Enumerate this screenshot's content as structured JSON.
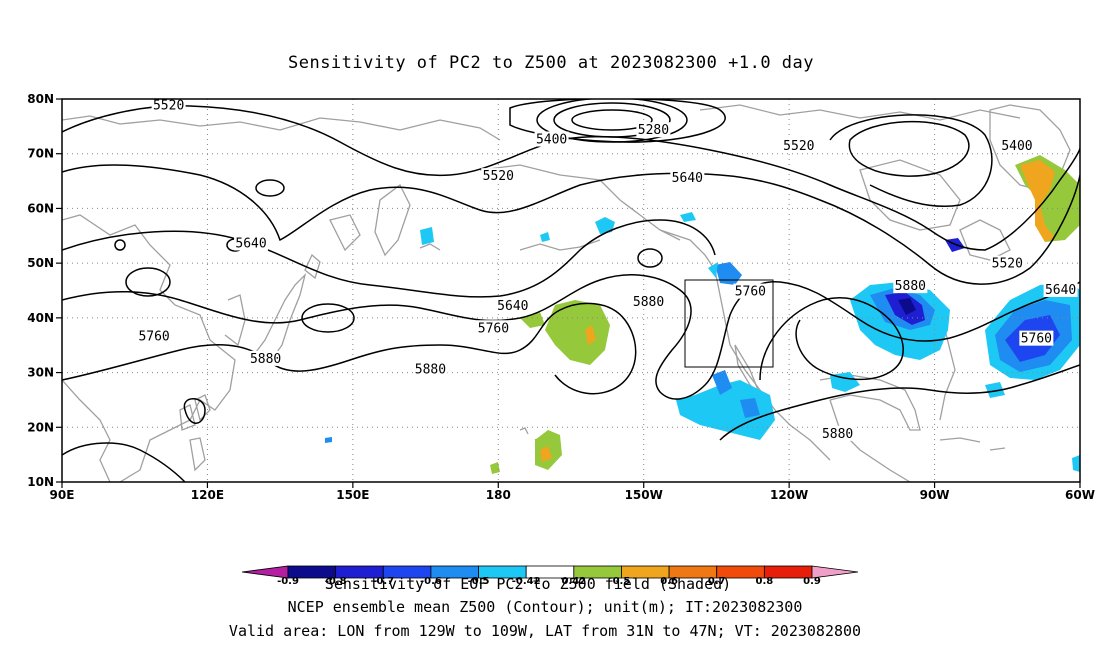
{
  "title": "Sensitivity of PC2 to Z500 at 2023082300 +1.0 day",
  "map": {
    "lon_range": [
      90,
      300
    ],
    "lat_range": [
      10,
      80
    ],
    "lat_ticks": [
      "80N",
      "70N",
      "60N",
      "50N",
      "40N",
      "30N",
      "20N",
      "10N"
    ],
    "lon_ticks": [
      "90E",
      "120E",
      "150E",
      "180",
      "150W",
      "120W",
      "90W",
      "60W"
    ],
    "grid": true,
    "valid_box": {
      "lon_west": 231,
      "lon_east": 251,
      "lat_south": 31,
      "lat_north": 47
    },
    "contour_labels": [
      {
        "text": "5520",
        "lon": 112,
        "lat": 78.8
      },
      {
        "text": "5400",
        "lon": 191,
        "lat": 72.6
      },
      {
        "text": "5280",
        "lon": 212,
        "lat": 74.3
      },
      {
        "text": "5520",
        "lon": 242,
        "lat": 71.4
      },
      {
        "text": "5400",
        "lon": 287,
        "lat": 71.4
      },
      {
        "text": "5520",
        "lon": 180,
        "lat": 65.9
      },
      {
        "text": "5640",
        "lon": 219,
        "lat": 65.6
      },
      {
        "text": "5640",
        "lon": 129,
        "lat": 53.6
      },
      {
        "text": "5520",
        "lon": 285,
        "lat": 49.9
      },
      {
        "text": "5640",
        "lon": 183,
        "lat": 42.2
      },
      {
        "text": "5760",
        "lon": 232,
        "lat": 44.8
      },
      {
        "text": "5880",
        "lon": 265,
        "lat": 45.8
      },
      {
        "text": "5640",
        "lon": 296,
        "lat": 45.1
      },
      {
        "text": "5880",
        "lon": 211,
        "lat": 42.9
      },
      {
        "text": "5760",
        "lon": 179,
        "lat": 38.1
      },
      {
        "text": "5760",
        "lon": 109,
        "lat": 36.6
      },
      {
        "text": "5760",
        "lon": 291,
        "lat": 36.2
      },
      {
        "text": "5880",
        "lon": 132,
        "lat": 32.5
      },
      {
        "text": "5880",
        "lon": 166,
        "lat": 30.6
      },
      {
        "text": "5880",
        "lon": 303,
        "lat": 25.9
      },
      {
        "text": "5880",
        "lon": 250,
        "lat": 18.8
      }
    ]
  },
  "colorbar": {
    "colors": [
      "#b41ea0",
      "#0b0b8c",
      "#1e1ed2",
      "#1e46f0",
      "#1e8cf0",
      "#1ec8f5",
      "#ffffff",
      "#96c83c",
      "#f0a51e",
      "#f07814",
      "#f04b0a",
      "#e61e0a",
      "#f0a0c8"
    ],
    "labels": [
      "-0.9",
      "-0.8",
      "-0.7",
      "-0.6",
      "-0.5",
      "-0.42",
      "0.42",
      "0.5",
      "0.6",
      "0.7",
      "0.8",
      "0.9"
    ]
  },
  "footer": {
    "line1": "Sensitivity of EOF PC2 to Z500 field (Shaded)",
    "line2": "NCEP ensemble mean Z500 (Contour); unit(m); IT:2023082300",
    "line3": "Valid area: LON from 129W to 109W, LAT from 31N to 47N; VT: 2023082800"
  }
}
